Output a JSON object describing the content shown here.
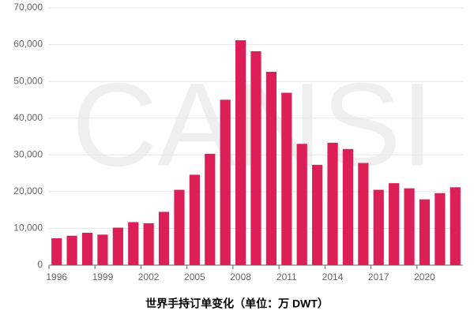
{
  "chart_data": {
    "type": "bar",
    "title": "世界手持订单变化（单位：万 DWT）",
    "watermark": "CANSI",
    "categories": [
      "1996",
      null,
      null,
      "1999",
      null,
      null,
      "2002",
      null,
      null,
      "2005",
      null,
      null,
      "2008",
      null,
      null,
      "2011",
      null,
      null,
      "2014",
      null,
      null,
      "2017",
      null,
      null,
      "2020",
      null,
      null
    ],
    "values": [
      7300,
      8000,
      8800,
      8300,
      10200,
      11700,
      11400,
      14500,
      20500,
      24600,
      30300,
      45000,
      61200,
      58200,
      52600,
      46900,
      33000,
      27300,
      33300,
      31600,
      27800,
      20500,
      22300,
      20900,
      17900,
      19600,
      21200
    ],
    "color": "#dc1f57",
    "ylim": [
      0,
      70000
    ],
    "yticks": [
      0,
      {
        "value": 10000,
        "label": "10,000"
      },
      {
        "value": 20000,
        "label": "20,000"
      },
      {
        "value": 30000,
        "label": "30,000"
      },
      {
        "value": 40000,
        "label": "40,000"
      },
      {
        "value": 50000,
        "label": "50,000"
      },
      {
        "value": 60000,
        "label": "60,000"
      },
      {
        "value": 70000,
        "label": "70,000"
      }
    ],
    "grid": true
  }
}
